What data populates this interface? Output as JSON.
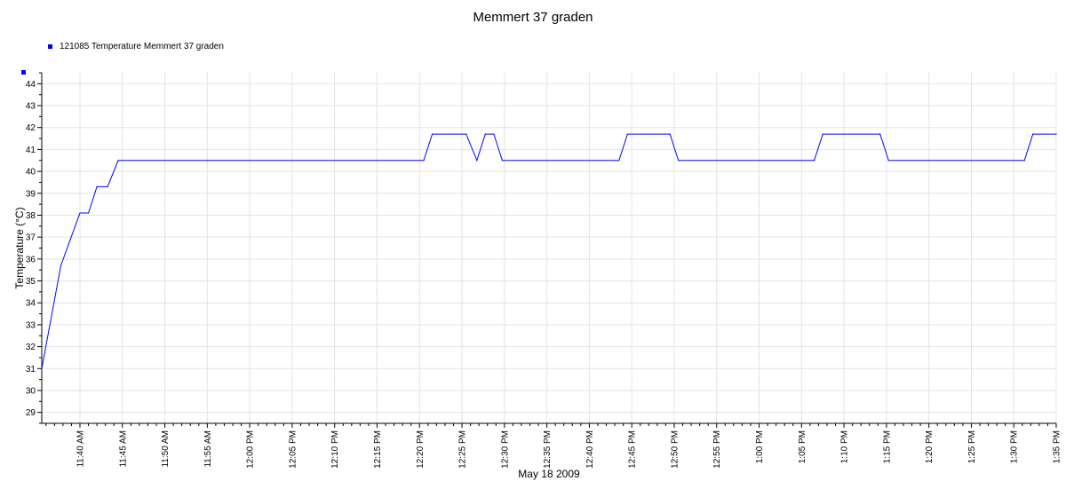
{
  "chart_data": {
    "type": "line",
    "title": "Memmert 37 graden",
    "xlabel": "May 18 2009",
    "ylabel": "Temperature (°C)",
    "ylim": [
      28.5,
      44.5
    ],
    "xlim_minutes_from_noon": [
      -24.5,
      95
    ],
    "grid": true,
    "legend_position": "top-left",
    "y_ticks": [
      "29",
      "30",
      "31",
      "32",
      "33",
      "34",
      "35",
      "36",
      "37",
      "38",
      "39",
      "40",
      "41",
      "42",
      "43",
      "44"
    ],
    "x_ticks": [
      "11:40 AM",
      "11:45 AM",
      "11:50 AM",
      "11:55 AM",
      "12:00 PM",
      "12:05 PM",
      "12:10 PM",
      "12:15 PM",
      "12:20 PM",
      "12:25 PM",
      "12:30 PM",
      "12:35 PM",
      "12:40 PM",
      "12:45 PM",
      "12:50 PM",
      "12:55 PM",
      "1:00 PM",
      "1:05 PM",
      "1:10 PM",
      "1:15 PM",
      "1:20 PM",
      "1:25 PM",
      "1:30 PM",
      "1:35 PM"
    ],
    "series": [
      {
        "name": "121085 Temperature Memmert 37 graden",
        "color": "#0000ff",
        "points": [
          [
            "11:35:30 AM",
            31.0
          ],
          [
            "11:37:45 AM",
            35.7
          ],
          [
            "11:40:00 AM",
            38.1
          ],
          [
            "11:41:00 AM",
            38.1
          ],
          [
            "11:42:00 AM",
            39.3
          ],
          [
            "11:43:15 AM",
            39.3
          ],
          [
            "11:44:30 AM",
            40.5
          ],
          [
            "12:20:30 PM",
            40.5
          ],
          [
            "12:21:30 PM",
            41.7
          ],
          [
            "12:25:30 PM",
            41.7
          ],
          [
            "12:26:45 PM",
            40.5
          ],
          [
            "12:27:45 PM",
            41.7
          ],
          [
            "12:28:45 PM",
            41.7
          ],
          [
            "12:29:45 PM",
            40.5
          ],
          [
            "12:43:30 PM",
            40.5
          ],
          [
            "12:44:30 PM",
            41.7
          ],
          [
            "12:49:30 PM",
            41.7
          ],
          [
            "12:50:30 PM",
            40.5
          ],
          [
            "1:06:30 PM",
            40.5
          ],
          [
            "1:07:30 PM",
            41.7
          ],
          [
            "1:14:15 PM",
            41.7
          ],
          [
            "1:15:15 PM",
            40.5
          ],
          [
            "1:31:15 PM",
            40.5
          ],
          [
            "1:32:15 PM",
            41.7
          ],
          [
            "1:35:00 PM",
            41.7
          ]
        ]
      }
    ]
  }
}
